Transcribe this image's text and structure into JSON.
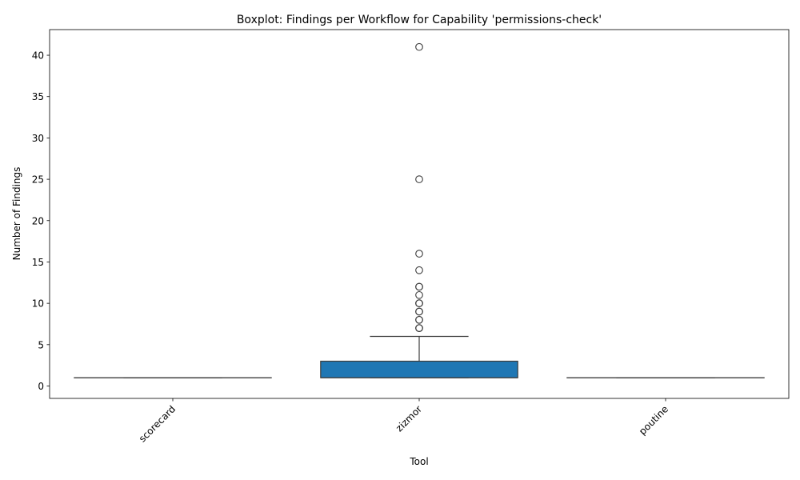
{
  "chart_data": {
    "type": "boxplot",
    "title": "Boxplot: Findings per Workflow for Capability 'permissions-check'",
    "xlabel": "Tool",
    "ylabel": "Number of Findings",
    "categories": [
      "scorecard",
      "zizmor",
      "poutine"
    ],
    "ylim": [
      -1.5,
      43.1
    ],
    "yticks": [
      0,
      5,
      10,
      15,
      20,
      25,
      30,
      35,
      40
    ],
    "box_color": "#1f77b4",
    "line_color": "#3d3d3d",
    "grid": false,
    "boxes": [
      {
        "category": "scorecard",
        "q1": 1,
        "median": 1,
        "q3": 1,
        "whisker_low": 1,
        "whisker_high": 1,
        "outliers": []
      },
      {
        "category": "zizmor",
        "q1": 1,
        "median": 1,
        "q3": 3,
        "whisker_low": 1,
        "whisker_high": 6,
        "outliers": [
          7,
          7,
          8,
          8,
          9,
          9,
          10,
          10,
          11,
          12,
          12,
          14,
          16,
          25,
          41
        ]
      },
      {
        "category": "poutine",
        "q1": 1,
        "median": 1,
        "q3": 1,
        "whisker_low": 1,
        "whisker_high": 1,
        "outliers": []
      }
    ]
  }
}
